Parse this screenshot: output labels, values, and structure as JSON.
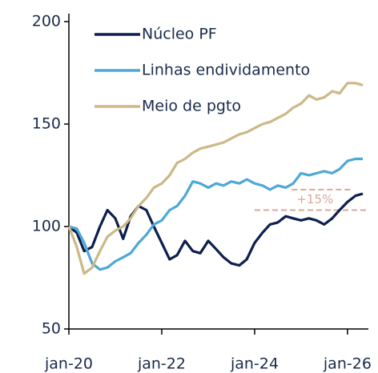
{
  "chart_data": {
    "type": "line",
    "x": [
      2020.0,
      2020.17,
      2020.33,
      2020.5,
      2020.67,
      2020.83,
      2021.0,
      2021.17,
      2021.33,
      2021.5,
      2021.67,
      2021.83,
      2022.0,
      2022.17,
      2022.33,
      2022.5,
      2022.67,
      2022.83,
      2023.0,
      2023.17,
      2023.33,
      2023.5,
      2023.67,
      2023.83,
      2024.0,
      2024.17,
      2024.33,
      2024.5,
      2024.67,
      2024.83,
      2025.0,
      2025.17,
      2025.33,
      2025.5,
      2025.67,
      2025.83,
      2026.0,
      2026.17,
      2026.33
    ],
    "series": [
      {
        "name": "Núcleo PF",
        "color": "#0d1f4e",
        "values": [
          100,
          97,
          88,
          90,
          100,
          108,
          104,
          94,
          105,
          110,
          108,
          100,
          92,
          84,
          86,
          93,
          88,
          87,
          93,
          89,
          85,
          82,
          81,
          84,
          92,
          97,
          101,
          102,
          105,
          104,
          103,
          104,
          103,
          101,
          104,
          108,
          112,
          115,
          116
        ]
      },
      {
        "name": "Linhas endividamento",
        "color": "#4ea8d6",
        "values": [
          100,
          99,
          92,
          82,
          79,
          80,
          83,
          85,
          87,
          92,
          96,
          101,
          103,
          108,
          110,
          115,
          122,
          121,
          119,
          121,
          120,
          122,
          121,
          123,
          121,
          120,
          118,
          120,
          119,
          121,
          126,
          125,
          126,
          127,
          126,
          128,
          132,
          133,
          133
        ]
      },
      {
        "name": "Meio de pgto",
        "color": "#cdb886",
        "values": [
          100,
          90,
          77,
          80,
          88,
          95,
          98,
          100,
          104,
          110,
          114,
          119,
          121,
          125,
          131,
          133,
          136,
          138,
          139,
          140,
          141,
          143,
          145,
          146,
          148,
          150,
          151,
          153,
          155,
          158,
          160,
          164,
          162,
          163,
          166,
          165,
          170,
          170,
          169
        ]
      }
    ],
    "xlim": [
      2020,
      2026.45
    ],
    "xticks": [
      {
        "value": 2020,
        "label": "jan-20"
      },
      {
        "value": 2022,
        "label": "jan-22"
      },
      {
        "value": 2024,
        "label": "jan-24"
      },
      {
        "value": 2026,
        "label": "jan-26"
      }
    ],
    "ylim": [
      50,
      200
    ],
    "yticks": [
      50,
      100,
      150,
      200
    ],
    "annotation": {
      "text": "+15%",
      "lower": 108,
      "upper": 118,
      "color": "#d9a89a"
    },
    "legend": "upper left"
  }
}
